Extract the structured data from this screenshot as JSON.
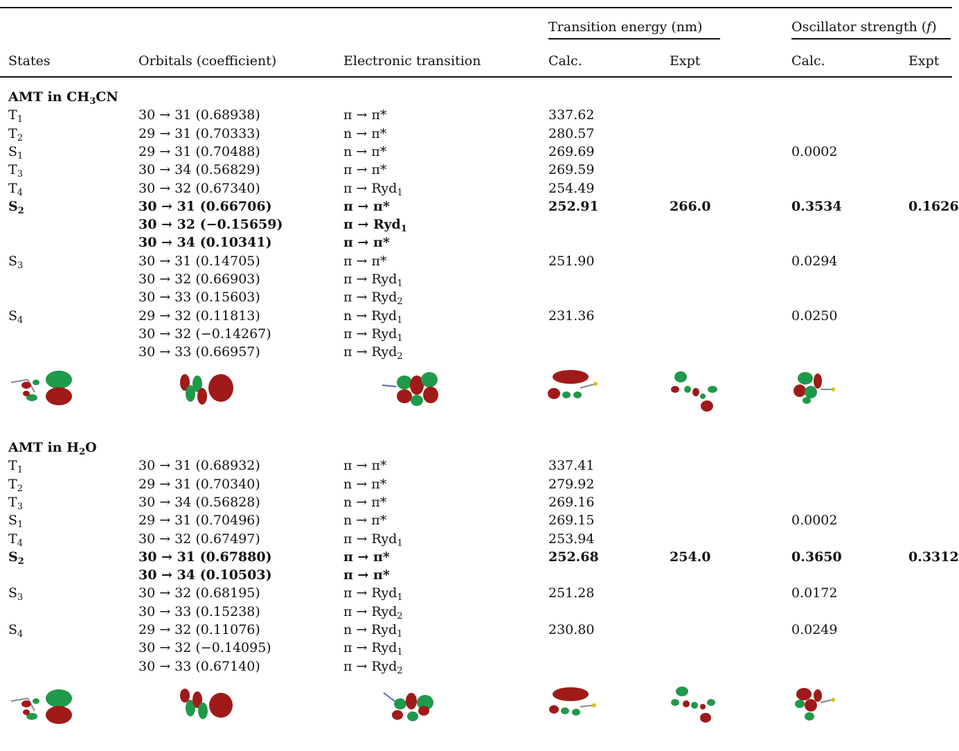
{
  "headers": {
    "states": "States",
    "orbitals": "Orbitals (coefficient)",
    "electronic": "Electronic transition",
    "te_group": "Transition energy (nm)",
    "os_group_pre": "Oscillator strength (",
    "os_group_f": "f",
    "os_group_post": ")",
    "calc1": "Calc.",
    "expt1": "Expt",
    "calc2": "Calc.",
    "expt2": "Expt"
  },
  "sections": [
    {
      "title_pre": "AMT in CH",
      "title_sub": "3",
      "title_post": "CN",
      "rows": [
        {
          "state": "T",
          "sub": "1",
          "orb": "30 → 31 (0.68938)",
          "tr": "π → π*",
          "trsub": "",
          "calc": "337.62",
          "expt": "",
          "fcalc": "",
          "fexpt": "",
          "bold": false
        },
        {
          "state": "T",
          "sub": "2",
          "orb": "29 → 31 (0.70333)",
          "tr": "n → π*",
          "trsub": "",
          "calc": "280.57",
          "expt": "",
          "fcalc": "",
          "fexpt": "",
          "bold": false
        },
        {
          "state": "S",
          "sub": "1",
          "orb": "29 → 31 (0.70488)",
          "tr": "n → π*",
          "trsub": "",
          "calc": "269.69",
          "expt": "",
          "fcalc": "0.0002",
          "fexpt": "",
          "bold": false
        },
        {
          "state": "T",
          "sub": "3",
          "orb": "30 → 34 (0.56829)",
          "tr": "π → π*",
          "trsub": "",
          "calc": "269.59",
          "expt": "",
          "fcalc": "",
          "fexpt": "",
          "bold": false
        },
        {
          "state": "T",
          "sub": "4",
          "orb": "30 → 32 (0.67340)",
          "tr": "π → Ryd",
          "trsub": "1",
          "calc": "254.49",
          "expt": "",
          "fcalc": "",
          "fexpt": "",
          "bold": false
        },
        {
          "state": "S",
          "sub": "2",
          "orb": "30 → 31 (0.66706)",
          "tr": "π → π*",
          "trsub": "",
          "calc": "252.91",
          "expt": "266.0",
          "fcalc": "0.3534",
          "fexpt": "0.1626",
          "bold": true
        },
        {
          "state": "",
          "sub": "",
          "orb": "30 → 32 (−0.15659)",
          "tr": "π → Ryd",
          "trsub": "1",
          "calc": "",
          "expt": "",
          "fcalc": "",
          "fexpt": "",
          "bold": true
        },
        {
          "state": "",
          "sub": "",
          "orb": "30 → 34 (0.10341)",
          "tr": "π → π*",
          "trsub": "",
          "calc": "",
          "expt": "",
          "fcalc": "",
          "fexpt": "",
          "bold": true
        },
        {
          "state": "S",
          "sub": "3",
          "orb": "30 → 31 (0.14705)",
          "tr": "π → π*",
          "trsub": "",
          "calc": "251.90",
          "expt": "",
          "fcalc": "0.0294",
          "fexpt": "",
          "bold": false
        },
        {
          "state": "",
          "sub": "",
          "orb": "30 → 32 (0.66903)",
          "tr": "π → Ryd",
          "trsub": "1",
          "calc": "",
          "expt": "",
          "fcalc": "",
          "fexpt": "",
          "bold": false
        },
        {
          "state": "",
          "sub": "",
          "orb": "30 → 33 (0.15603)",
          "tr": "π → Ryd",
          "trsub": "2",
          "calc": "",
          "expt": "",
          "fcalc": "",
          "fexpt": "",
          "bold": false
        },
        {
          "state": "S",
          "sub": "4",
          "orb": "29 → 32 (0.11813)",
          "tr": "n → Ryd",
          "trsub": "1",
          "calc": "231.36",
          "expt": "",
          "fcalc": "0.0250",
          "fexpt": "",
          "bold": false
        },
        {
          "state": "",
          "sub": "",
          "orb": "30 → 32 (−0.14267)",
          "tr": "π → Ryd",
          "trsub": "1",
          "calc": "",
          "expt": "",
          "fcalc": "",
          "fexpt": "",
          "bold": false
        },
        {
          "state": "",
          "sub": "",
          "orb": "30 → 33 (0.66957)",
          "tr": "π → Ryd",
          "trsub": "2",
          "calc": "",
          "expt": "",
          "fcalc": "",
          "fexpt": "",
          "bold": false
        }
      ]
    },
    {
      "title_pre": "AMT in H",
      "title_sub": "2",
      "title_post": "O",
      "rows": [
        {
          "state": "T",
          "sub": "1",
          "orb": "30 → 31 (0.68932)",
          "tr": "π → π*",
          "trsub": "",
          "calc": "337.41",
          "expt": "",
          "fcalc": "",
          "fexpt": "",
          "bold": false
        },
        {
          "state": "T",
          "sub": "2",
          "orb": "29 → 31 (0.70340)",
          "tr": "n → π*",
          "trsub": "",
          "calc": "279.92",
          "expt": "",
          "fcalc": "",
          "fexpt": "",
          "bold": false
        },
        {
          "state": "T",
          "sub": "3",
          "orb": "30 → 34 (0.56828)",
          "tr": "n → π*",
          "trsub": "",
          "calc": "269.16",
          "expt": "",
          "fcalc": "",
          "fexpt": "",
          "bold": false
        },
        {
          "state": "S",
          "sub": "1",
          "orb": "29 → 31 (0.70496)",
          "tr": "n → π*",
          "trsub": "",
          "calc": "269.15",
          "expt": "",
          "fcalc": "0.0002",
          "fexpt": "",
          "bold": false
        },
        {
          "state": "T",
          "sub": "4",
          "orb": "30 → 32 (0.67497)",
          "tr": "π → Ryd",
          "trsub": "1",
          "calc": "253.94",
          "expt": "",
          "fcalc": "",
          "fexpt": "",
          "bold": false
        },
        {
          "state": "S",
          "sub": "2",
          "orb": "30 → 31 (0.67880)",
          "tr": "π → π*",
          "trsub": "",
          "calc": "252.68",
          "expt": "254.0",
          "fcalc": "0.3650",
          "fexpt": "0.3312",
          "bold": true
        },
        {
          "state": "",
          "sub": "",
          "orb": "30 → 34 (0.10503)",
          "tr": "π → π*",
          "trsub": "",
          "calc": "",
          "expt": "",
          "fcalc": "",
          "fexpt": "",
          "bold": true
        },
        {
          "state": "S",
          "sub": "3",
          "orb": "30 → 32 (0.68195)",
          "tr": "π → Ryd",
          "trsub": "1",
          "calc": "251.28",
          "expt": "",
          "fcalc": "0.0172",
          "fexpt": "",
          "bold": false
        },
        {
          "state": "",
          "sub": "",
          "orb": "30 → 33 (0.15238)",
          "tr": "π → Ryd",
          "trsub": "2",
          "calc": "",
          "expt": "",
          "fcalc": "",
          "fexpt": "",
          "bold": false
        },
        {
          "state": "S",
          "sub": "4",
          "orb": "29 → 32 (0.11076)",
          "tr": "n → Ryd",
          "trsub": "1",
          "calc": "230.80",
          "expt": "",
          "fcalc": "0.0249",
          "fexpt": "",
          "bold": false
        },
        {
          "state": "",
          "sub": "",
          "orb": "30 → 32 (−0.14095)",
          "tr": "π → Ryd",
          "trsub": "1",
          "calc": "",
          "expt": "",
          "fcalc": "",
          "fexpt": "",
          "bold": false
        },
        {
          "state": "",
          "sub": "",
          "orb": "30 → 33 (0.67140)",
          "tr": "π → Ryd",
          "trsub": "2",
          "calc": "",
          "expt": "",
          "fcalc": "",
          "fexpt": "",
          "bold": false
        }
      ]
    }
  ],
  "colors": {
    "lobe_green": "#1f9a4a",
    "lobe_red": "#a01a1a",
    "rule": "#111111"
  }
}
